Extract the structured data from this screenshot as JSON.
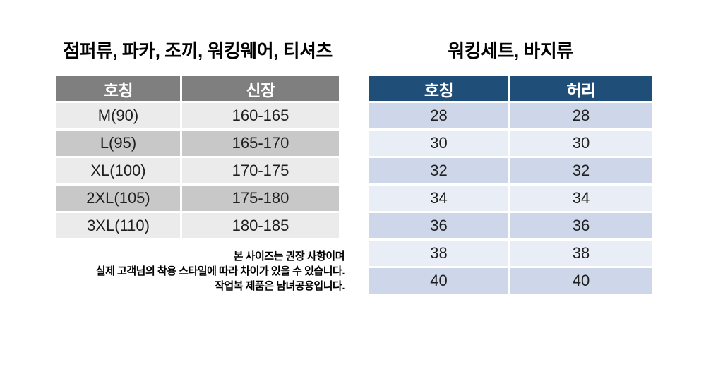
{
  "colors": {
    "left_header_bg": "#7f7f7f",
    "left_row_light": "#ebebeb",
    "left_row_dark": "#c8c8c8",
    "right_header_bg": "#1f4e79",
    "right_row_light": "#e9edf6",
    "right_row_dark": "#cdd7e9",
    "header_text": "#ffffff",
    "body_text": "#1f1f1f"
  },
  "left_section": {
    "title": "점퍼류, 파카, 조끼, 워킹웨어, 티셔츠",
    "table": {
      "headers": [
        "호칭",
        "신장"
      ],
      "rows": [
        [
          "M(90)",
          "160-165"
        ],
        [
          "L(95)",
          "165-170"
        ],
        [
          "XL(100)",
          "170-175"
        ],
        [
          "2XL(105)",
          "175-180"
        ],
        [
          "3XL(110)",
          "180-185"
        ]
      ]
    },
    "note_lines": [
      "본 사이즈는 권장 사항이며",
      "실제 고객님의 착용 스타일에 따라 차이가 있을 수 있습니다.",
      "작업복 제품은 남녀공용입니다."
    ]
  },
  "right_section": {
    "title": "워킹세트, 바지류",
    "table": {
      "headers": [
        "호칭",
        "허리"
      ],
      "rows": [
        [
          "28",
          "28"
        ],
        [
          "30",
          "30"
        ],
        [
          "32",
          "32"
        ],
        [
          "34",
          "34"
        ],
        [
          "36",
          "36"
        ],
        [
          "38",
          "38"
        ],
        [
          "40",
          "40"
        ]
      ]
    }
  }
}
